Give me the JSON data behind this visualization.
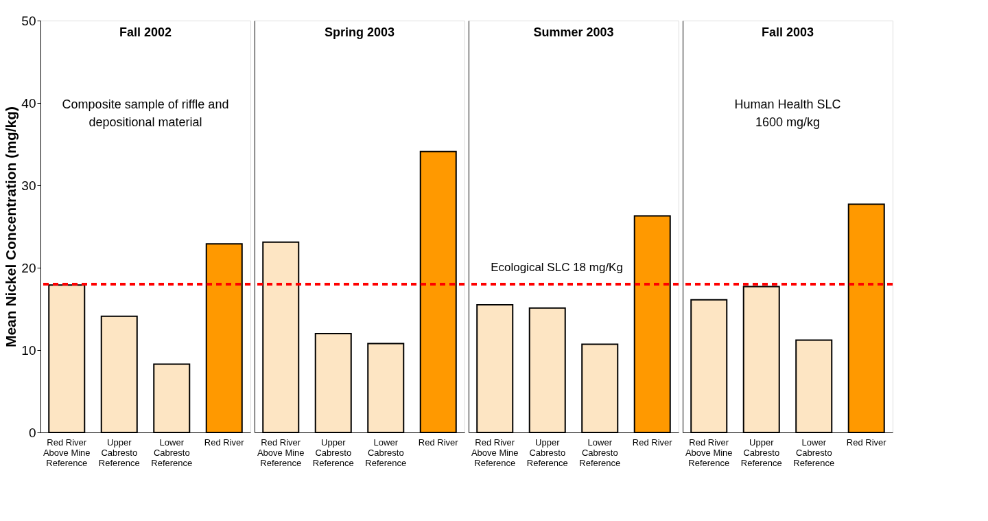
{
  "chart_data": [
    {
      "type": "bar",
      "title": "Fall 2002",
      "ylabel": "Mean Nickel Concentration (mg/kg)",
      "categories": [
        "Red River\nAbove Mine\nReference",
        "Upper\nCabresto\nReference",
        "Lower\nCabresto\nReference",
        "Red River"
      ],
      "values": [
        17.9,
        14.1,
        8.3,
        22.9
      ],
      "colors": [
        "#fde5c3",
        "#fde5c3",
        "#fde5c3",
        "#ff9900"
      ],
      "ylim": [
        0,
        50
      ],
      "yticks": [
        0,
        10,
        20,
        30,
        40,
        50
      ],
      "grid": false,
      "ref_lines": [
        {
          "axis": "y",
          "value": 18,
          "color": "#ff0000",
          "line_style": "dashed"
        }
      ],
      "annotations": [
        "Composite sample of riffle and\ndepositional material"
      ]
    },
    {
      "type": "bar",
      "title": "Spring 2003",
      "categories": [
        "Red River\nAbove Mine\nReference",
        "Upper\nCabresto\nReference",
        "Lower\nCabresto\nReference",
        "Red River"
      ],
      "values": [
        23.1,
        12.0,
        10.8,
        34.1
      ],
      "colors": [
        "#fde5c3",
        "#fde5c3",
        "#fde5c3",
        "#ff9900"
      ],
      "ylim": [
        0,
        50
      ],
      "tick_labels": "x",
      "grid": false,
      "ref_lines": [
        {
          "axis": "y",
          "value": 18,
          "color": "#ff0000",
          "line_style": "dashed"
        }
      ]
    },
    {
      "type": "bar",
      "title": "Summer 2003",
      "categories": [
        "Red River\nAbove Mine\nReference",
        "Upper\nCabresto\nReference",
        "Lower\nCabresto\nReference",
        "Red River"
      ],
      "values": [
        15.5,
        15.1,
        10.7,
        26.3
      ],
      "colors": [
        "#fde5c3",
        "#fde5c3",
        "#fde5c3",
        "#ff9900"
      ],
      "ylim": [
        0,
        50
      ],
      "tick_labels": "x",
      "grid": false,
      "ref_lines": [
        {
          "axis": "y",
          "value": 18,
          "color": "#ff0000",
          "line_style": "dashed",
          "label": "Ecological SLC 18 mg/Kg"
        }
      ]
    },
    {
      "type": "bar",
      "title": "Fall 2003",
      "categories": [
        "Red River\nAbove Mine\nReference",
        "Upper\nCabresto\nReference",
        "Lower\nCabresto\nReference",
        "Red River"
      ],
      "values": [
        16.1,
        17.7,
        11.2,
        27.7
      ],
      "colors": [
        "#fde5c3",
        "#fde5c3",
        "#fde5c3",
        "#ff9900"
      ],
      "ylim": [
        0,
        50
      ],
      "tick_labels": "x",
      "grid": false,
      "ref_lines": [
        {
          "axis": "y",
          "value": 18,
          "color": "#ff0000",
          "line_style": "dashed"
        }
      ],
      "annotations": [
        "Human Health SLC\n1600 mg/kg"
      ]
    }
  ]
}
